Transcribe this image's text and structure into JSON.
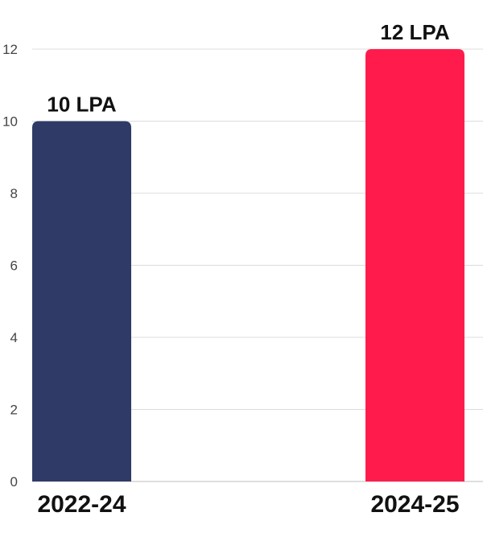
{
  "chart_data": {
    "type": "bar",
    "categories": [
      "2022-24",
      "2024-25"
    ],
    "values": [
      10,
      12
    ],
    "data_labels": [
      "10 LPA",
      "12 LPA"
    ],
    "colors": [
      "#2f3b66",
      "#ff1c4c"
    ],
    "yticks": [
      "0",
      "2",
      "4",
      "6",
      "8",
      "10",
      "12"
    ],
    "ylim": [
      0,
      12
    ],
    "grid": true,
    "legend": "none",
    "title": "",
    "xlabel": "",
    "ylabel": ""
  }
}
